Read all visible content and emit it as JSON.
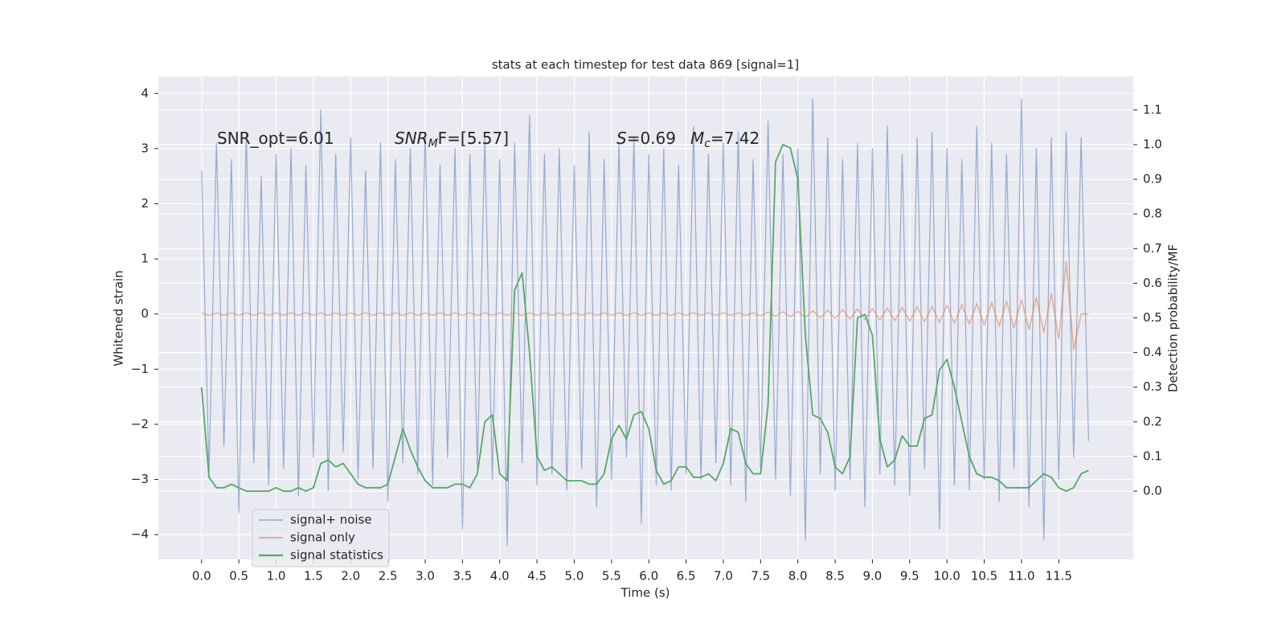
{
  "chart_data": {
    "type": "line",
    "title": "stats at each timestep for test data 869 [signal=1]",
    "xlabel": "Time (s)",
    "ylabel": "Whitened strain",
    "y2label": "Detection probability/MF",
    "annotations": [
      [
        "SNR_opt=6.01"
      ],
      [
        "SNR",
        "M",
        "F=[5.57]"
      ],
      [
        "S",
        "=0.69"
      ],
      [
        "M",
        "c",
        "=7.42"
      ]
    ],
    "grid": true,
    "legend": "lower left",
    "xlim": [
      -0.58,
      12.5
    ],
    "ylim": [
      -4.45,
      4.31
    ],
    "y2lim": [
      -0.197,
      1.197
    ],
    "xticks": [
      {
        "value": 0,
        "label": "0.0"
      },
      0.5,
      {
        "value": 1,
        "label": "1.0"
      },
      1.5,
      {
        "value": 2,
        "label": "2.0"
      },
      2.5,
      {
        "value": 3,
        "label": "3.0"
      },
      3.5,
      {
        "value": 4,
        "label": "4.0"
      },
      4.5,
      {
        "value": 5,
        "label": "5.0"
      },
      5.5,
      {
        "value": 6,
        "label": "6.0"
      },
      6.5,
      {
        "value": 7,
        "label": "7.0"
      },
      7.5,
      {
        "value": 8,
        "label": "8.0"
      },
      8.5,
      {
        "value": 9,
        "label": "9.0"
      },
      9.5,
      {
        "value": 10,
        "label": "10.0"
      },
      10.5,
      {
        "value": 11,
        "label": "11.0"
      },
      11.5
    ],
    "yticks": [
      {
        "value": -4,
        "label": "−4"
      },
      {
        "value": -3,
        "label": "−3"
      },
      {
        "value": -2,
        "label": "−2"
      },
      {
        "value": -1,
        "label": "−1"
      },
      0,
      1,
      2,
      3,
      4
    ],
    "y2ticks": [
      {
        "value": 0,
        "label": "0.0"
      },
      0.1,
      0.2,
      0.3,
      0.4,
      0.5,
      0.6,
      0.7,
      0.8,
      0.9,
      {
        "value": 1,
        "label": "1.0"
      },
      1.1
    ],
    "x": [
      0.0,
      0.1,
      0.2,
      0.3,
      0.4,
      0.5,
      0.6,
      0.7,
      0.8,
      0.9,
      1.0,
      1.1,
      1.2,
      1.3,
      1.4,
      1.5,
      1.6,
      1.7,
      1.8,
      1.9,
      2.0,
      2.1,
      2.2,
      2.3,
      2.4,
      2.5,
      2.6,
      2.7,
      2.8,
      2.9,
      3.0,
      3.1,
      3.2,
      3.3,
      3.4,
      3.5,
      3.6,
      3.7,
      3.8,
      3.9,
      4.0,
      4.1,
      4.2,
      4.3,
      4.4,
      4.5,
      4.6,
      4.7,
      4.8,
      4.9,
      5.0,
      5.1,
      5.2,
      5.3,
      5.4,
      5.5,
      5.6,
      5.7,
      5.8,
      5.9,
      6.0,
      6.1,
      6.2,
      6.3,
      6.4,
      6.5,
      6.6,
      6.7,
      6.8,
      6.9,
      7.0,
      7.1,
      7.2,
      7.3,
      7.4,
      7.5,
      7.6,
      7.7,
      7.8,
      7.9,
      8.0,
      8.1,
      8.2,
      8.3,
      8.4,
      8.5,
      8.6,
      8.7,
      8.8,
      8.9,
      9.0,
      9.1,
      9.2,
      9.3,
      9.4,
      9.5,
      9.6,
      9.7,
      9.8,
      9.9,
      10.0,
      10.1,
      10.2,
      10.3,
      10.4,
      10.5,
      10.6,
      10.7,
      10.8,
      10.9,
      11.0,
      11.1,
      11.2,
      11.3,
      11.4,
      11.5,
      11.6,
      11.7,
      11.8,
      11.9
    ],
    "series": [
      {
        "name": "signal+ noise",
        "color": "#4c72b0",
        "values": [
          2.6,
          -2.9,
          3.1,
          -2.4,
          2.8,
          -3.6,
          3.3,
          -2.7,
          2.5,
          -3.1,
          2.9,
          -2.8,
          3.0,
          -3.3,
          2.7,
          -2.6,
          3.7,
          -3.2,
          2.9,
          -2.5,
          3.2,
          -3.0,
          2.6,
          -2.8,
          3.1,
          -3.4,
          2.8,
          -2.7,
          3.0,
          -2.9,
          3.3,
          -3.1,
          2.7,
          -2.6,
          3.0,
          -3.9,
          2.9,
          -2.8,
          3.2,
          -3.0,
          2.8,
          -4.2,
          3.1,
          -2.7,
          3.6,
          -3.1,
          2.9,
          -2.9,
          3.0,
          -3.2,
          2.7,
          -2.8,
          3.3,
          -3.5,
          2.8,
          -3.0,
          3.1,
          -2.6,
          3.2,
          -3.8,
          2.9,
          -3.1,
          3.0,
          -3.2,
          2.7,
          -2.9,
          3.4,
          -3.0,
          2.9,
          -2.7,
          3.1,
          -3.1,
          3.3,
          -3.4,
          2.8,
          -2.8,
          3.5,
          -3.0,
          2.9,
          -3.3,
          3.0,
          -4.1,
          3.9,
          -2.9,
          3.2,
          -3.2,
          2.8,
          -3.0,
          3.1,
          -3.5,
          3.0,
          -2.9,
          3.4,
          -3.1,
          2.9,
          -3.3,
          3.2,
          -2.8,
          3.3,
          -3.9,
          3.0,
          -3.1,
          2.8,
          -3.2,
          3.4,
          -3.0,
          3.1,
          -3.4,
          2.9,
          -2.8,
          3.9,
          -3.5,
          3.0,
          -4.1,
          3.2,
          -3.0,
          3.3,
          -2.6,
          3.2,
          -2.3
        ]
      },
      {
        "name": "signal only",
        "color": "#dd8452",
        "values": [
          0.02,
          -0.02,
          0.02,
          -0.02,
          0.02,
          -0.02,
          0.02,
          -0.02,
          0.02,
          -0.02,
          0.02,
          -0.02,
          0.02,
          -0.02,
          0.02,
          -0.02,
          0.02,
          -0.02,
          0.02,
          -0.02,
          0.02,
          -0.02,
          0.02,
          -0.02,
          0.02,
          -0.02,
          0.02,
          -0.02,
          0.02,
          -0.02,
          0.02,
          -0.02,
          0.02,
          -0.02,
          0.02,
          -0.02,
          0.02,
          -0.02,
          0.02,
          -0.02,
          0.02,
          -0.02,
          0.02,
          -0.02,
          0.02,
          -0.02,
          0.02,
          -0.02,
          0.02,
          -0.02,
          0.02,
          -0.02,
          0.02,
          -0.02,
          0.02,
          -0.02,
          0.02,
          -0.02,
          0.02,
          -0.02,
          0.02,
          -0.02,
          0.02,
          -0.02,
          0.02,
          -0.02,
          0.02,
          -0.02,
          0.02,
          -0.02,
          0.02,
          -0.02,
          0.02,
          -0.02,
          0.02,
          -0.03,
          0.03,
          -0.04,
          0.04,
          -0.05,
          0.05,
          -0.06,
          0.06,
          -0.07,
          0.07,
          -0.08,
          0.08,
          -0.09,
          0.09,
          -0.1,
          0.1,
          -0.11,
          0.11,
          -0.12,
          0.12,
          -0.13,
          0.13,
          -0.14,
          0.14,
          -0.15,
          0.16,
          -0.17,
          0.17,
          -0.18,
          0.19,
          -0.2,
          0.21,
          -0.22,
          0.23,
          -0.25,
          0.26,
          -0.28,
          0.3,
          -0.33,
          0.37,
          -0.45,
          0.95,
          -0.65,
          0.0,
          0.0
        ]
      },
      {
        "name": "signal statistics",
        "color": "#55a868",
        "axis": "y2",
        "values": [
          0.3,
          0.04,
          0.01,
          0.01,
          0.02,
          0.01,
          0.0,
          0.0,
          0.0,
          0.0,
          0.01,
          0.0,
          0.0,
          0.01,
          0.0,
          0.01,
          0.08,
          0.09,
          0.07,
          0.08,
          0.05,
          0.02,
          0.01,
          0.01,
          0.01,
          0.02,
          0.1,
          0.18,
          0.12,
          0.07,
          0.03,
          0.01,
          0.01,
          0.01,
          0.02,
          0.02,
          0.01,
          0.05,
          0.2,
          0.22,
          0.05,
          0.03,
          0.58,
          0.63,
          0.4,
          0.1,
          0.06,
          0.07,
          0.05,
          0.03,
          0.03,
          0.03,
          0.02,
          0.02,
          0.05,
          0.15,
          0.19,
          0.15,
          0.22,
          0.23,
          0.18,
          0.06,
          0.02,
          0.03,
          0.07,
          0.07,
          0.04,
          0.04,
          0.05,
          0.03,
          0.08,
          0.18,
          0.17,
          0.08,
          0.05,
          0.05,
          0.25,
          0.95,
          1.0,
          0.99,
          0.9,
          0.45,
          0.22,
          0.21,
          0.17,
          0.07,
          0.05,
          0.1,
          0.5,
          0.51,
          0.45,
          0.15,
          0.07,
          0.09,
          0.16,
          0.13,
          0.13,
          0.21,
          0.22,
          0.35,
          0.38,
          0.3,
          0.2,
          0.1,
          0.05,
          0.04,
          0.04,
          0.03,
          0.01,
          0.01,
          0.01,
          0.01,
          0.03,
          0.05,
          0.04,
          0.01,
          0.0,
          0.01,
          0.05,
          0.06
        ]
      }
    ]
  }
}
